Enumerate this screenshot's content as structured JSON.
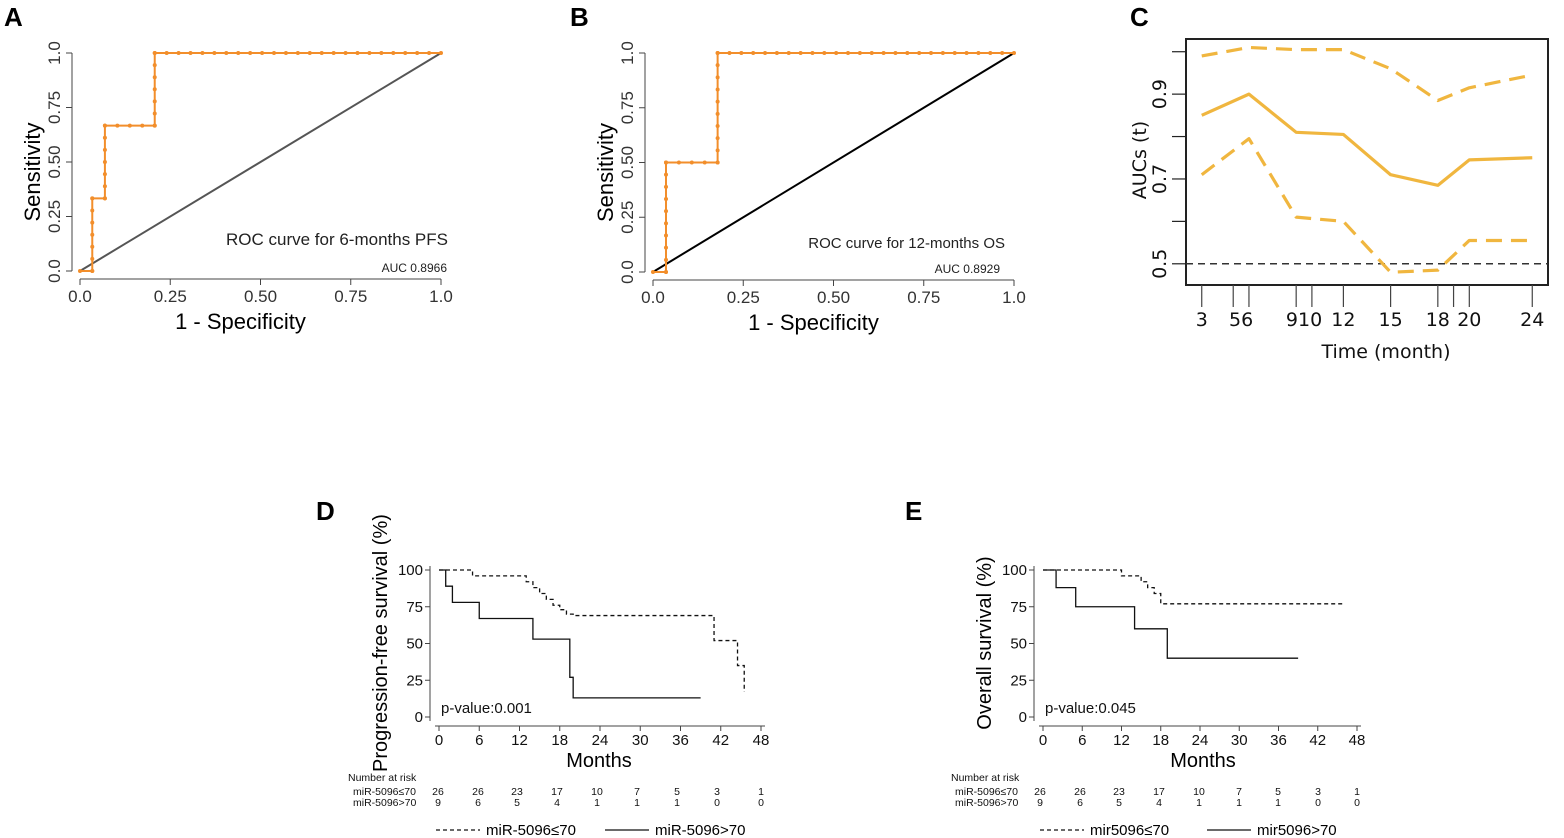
{
  "chart_data": [
    {
      "panel": "A",
      "type": "line",
      "annotation": "ROC curve for 6-months PFS",
      "auc_label": "AUC 0.8966",
      "xlabel": "1 - Specificity",
      "ylabel": "Sensitivity",
      "xlim": [
        0,
        1
      ],
      "ylim": [
        0,
        1
      ],
      "xticks": [
        "0.0",
        "0.25",
        "0.50",
        "0.75",
        "1.0"
      ],
      "yticks": [
        "0.0",
        "0.25",
        "0.50",
        "0.75",
        "1.0"
      ],
      "series": [
        {
          "name": "ROC",
          "color": "#F28E2B",
          "x": [
            0,
            0.034,
            0.034,
            0.069,
            0.069,
            0.207,
            0.207,
            1.0
          ],
          "y": [
            0,
            0,
            0.333,
            0.333,
            0.667,
            0.667,
            1.0,
            1.0
          ]
        },
        {
          "name": "reference",
          "color": "#555555",
          "x": [
            0,
            1
          ],
          "y": [
            0,
            1
          ]
        }
      ]
    },
    {
      "panel": "B",
      "type": "line",
      "annotation": "ROC curve for 12-months OS",
      "auc_label": "AUC 0.8929",
      "xlabel": "1 - Specificity",
      "ylabel": "Sensitivity",
      "xlim": [
        0,
        1
      ],
      "ylim": [
        0,
        1
      ],
      "xticks": [
        "0.0",
        "0.25",
        "0.50",
        "0.75",
        "1.0"
      ],
      "yticks": [
        "0.0",
        "0.25",
        "0.50",
        "0.75",
        "1.0"
      ],
      "series": [
        {
          "name": "ROC",
          "color": "#F28E2B",
          "x": [
            0,
            0.036,
            0.036,
            0.179,
            0.179,
            1.0
          ],
          "y": [
            0,
            0,
            0.5,
            0.5,
            1.0,
            1.0
          ]
        },
        {
          "name": "reference",
          "color": "#000000",
          "x": [
            0,
            1
          ],
          "y": [
            0,
            1
          ]
        }
      ]
    },
    {
      "panel": "C",
      "type": "line",
      "xlabel": "Time (month)",
      "ylabel": "AUCs (t)",
      "xlim": [
        2,
        25
      ],
      "ylim": [
        0.45,
        1.03
      ],
      "xticks": [
        "3",
        "56",
        "910",
        "12",
        "15",
        "18",
        "20",
        "24"
      ],
      "yticks": [
        "0.5",
        "0.7",
        "0.9"
      ],
      "ytick_values": [
        0.5,
        0.7,
        0.9
      ],
      "x_tick_marks": [
        3,
        5,
        6,
        9,
        10,
        12,
        15,
        18,
        19,
        20,
        24
      ],
      "x_tick_label_positions": [
        3,
        5.5,
        9.5,
        12,
        15,
        18,
        20,
        24
      ],
      "reference_line": 0.5,
      "color": "#F0B63F",
      "series": [
        {
          "name": "AUC",
          "x": [
            3,
            6,
            9,
            12,
            15,
            18,
            20,
            24
          ],
          "y": [
            0.85,
            0.9,
            0.81,
            0.805,
            0.71,
            0.685,
            0.745,
            0.75
          ]
        },
        {
          "name": "upper CI",
          "x": [
            3,
            6,
            9,
            12,
            15,
            18,
            20,
            24
          ],
          "y": [
            0.99,
            1.01,
            1.005,
            1.005,
            0.96,
            0.885,
            0.915,
            0.945
          ]
        },
        {
          "name": "lower CI",
          "x": [
            3,
            6,
            9,
            12,
            15,
            18,
            20,
            24
          ],
          "y": [
            0.71,
            0.795,
            0.61,
            0.6,
            0.48,
            0.485,
            0.555,
            0.555
          ]
        }
      ]
    },
    {
      "panel": "D",
      "type": "line",
      "xlabel": "Months",
      "ylabel": "Progression-free survival (%)",
      "xlim": [
        0,
        48
      ],
      "ylim": [
        0,
        100
      ],
      "xticks": [
        "0",
        "6",
        "12",
        "18",
        "24",
        "30",
        "36",
        "42",
        "48"
      ],
      "yticks": [
        "0",
        "25",
        "50",
        "75",
        "100"
      ],
      "annotation": "p-value:0.001",
      "legend": [
        "miR-5096≤70",
        "miR-5096>70"
      ],
      "series": [
        {
          "name": "miR-5096≤70",
          "style": "dashed",
          "x": [
            0,
            5,
            13,
            14,
            15,
            16,
            17,
            18,
            19,
            20,
            41,
            42,
            44.5,
            45.5
          ],
          "y": [
            100,
            96,
            92,
            88,
            84,
            80,
            76,
            73,
            70,
            69,
            52,
            52,
            35,
            17
          ]
        },
        {
          "name": "miR-5096>70",
          "style": "solid",
          "x": [
            0,
            1,
            2,
            6,
            14,
            19.5,
            20,
            39
          ],
          "y": [
            100,
            89,
            78,
            67,
            53,
            27,
            13,
            13
          ]
        }
      ],
      "risk_table": {
        "title": "Number at risk",
        "rows": [
          {
            "label": "miR-5096≤70",
            "counts": [
              "26",
              "26",
              "23",
              "17",
              "10",
              "7",
              "5",
              "3",
              "1"
            ]
          },
          {
            "label": "miR-5096>70",
            "counts": [
              "9",
              "6",
              "5",
              "4",
              "1",
              "1",
              "1",
              "0",
              "0"
            ]
          }
        ]
      }
    },
    {
      "panel": "E",
      "type": "line",
      "xlabel": "Months",
      "ylabel": "Overall survival (%)",
      "xlim": [
        0,
        48
      ],
      "ylim": [
        0,
        100
      ],
      "xticks": [
        "0",
        "6",
        "12",
        "18",
        "24",
        "30",
        "36",
        "42",
        "48"
      ],
      "yticks": [
        "0",
        "25",
        "50",
        "75",
        "100"
      ],
      "annotation": "p-value:0.045",
      "legend": [
        "mir5096≤70",
        "mir5096>70"
      ],
      "series": [
        {
          "name": "mir5096≤70",
          "style": "dashed",
          "x": [
            0,
            12,
            15,
            16,
            17,
            18,
            46
          ],
          "y": [
            100,
            96,
            92,
            88,
            84,
            77,
            77
          ]
        },
        {
          "name": "mir5096>70",
          "style": "solid",
          "x": [
            0,
            2,
            5,
            14,
            19,
            39
          ],
          "y": [
            100,
            88,
            75,
            60,
            40,
            40
          ]
        }
      ],
      "risk_table": {
        "title": "Number at risk",
        "rows": [
          {
            "label": "miR-5096≤70",
            "counts": [
              "26",
              "26",
              "23",
              "17",
              "10",
              "7",
              "5",
              "3",
              "1"
            ]
          },
          {
            "label": "miR-5096>70",
            "counts": [
              "9",
              "6",
              "5",
              "4",
              "1",
              "1",
              "1",
              "0",
              "0"
            ]
          }
        ]
      }
    }
  ]
}
